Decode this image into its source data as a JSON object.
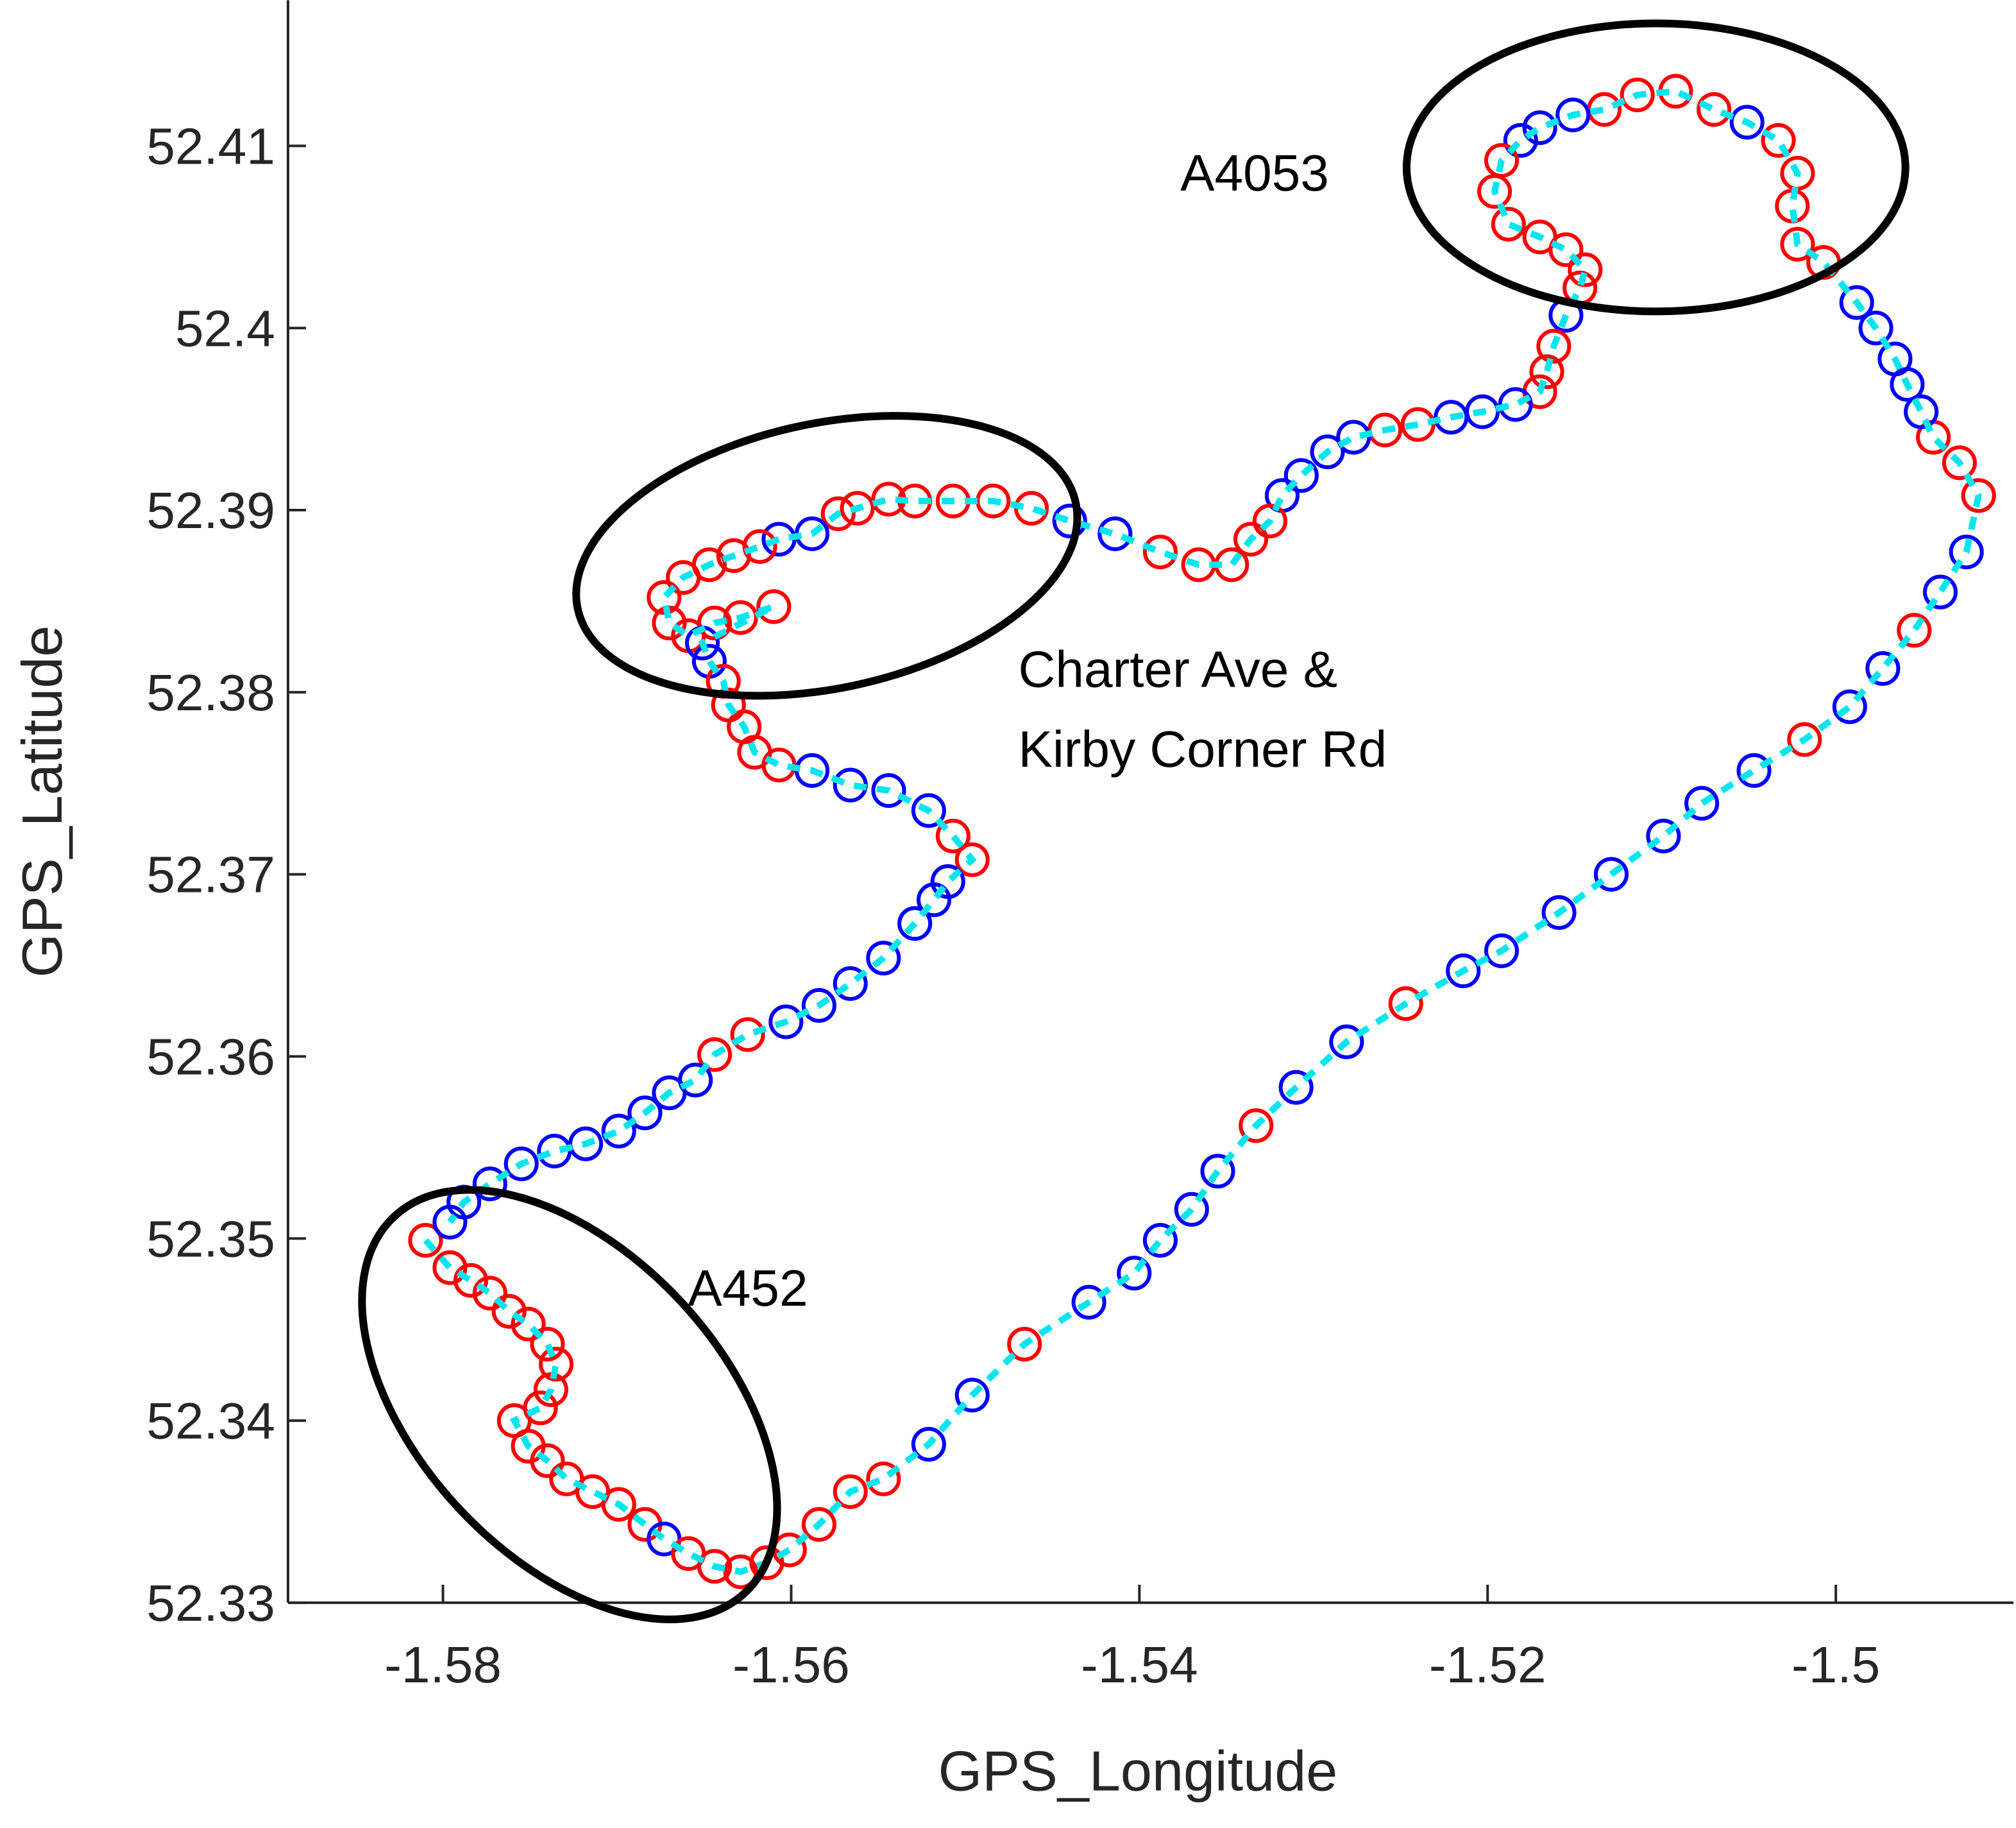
{
  "chart_data": {
    "type": "scatter",
    "xlabel": "GPS_Longitude",
    "ylabel": "GPS_Latitude",
    "xlim": [
      -1.5889,
      -1.4898
    ],
    "ylim": [
      52.33,
      52.418
    ],
    "xticks": [
      -1.58,
      -1.56,
      -1.54,
      -1.52,
      -1.5
    ],
    "yticks": [
      52.33,
      52.34,
      52.35,
      52.36,
      52.37,
      52.38,
      52.39,
      52.4,
      52.41
    ],
    "line_color": "#00e5ee",
    "annotations": [
      "A4053",
      "Charter Ave &",
      "Kirby Corner Rd",
      "A452"
    ],
    "x": [
      -1.581,
      -1.5796,
      -1.5784,
      -1.5773,
      -1.5762,
      -1.5751,
      -1.574,
      -1.5735,
      -1.5738,
      -1.5744,
      -1.5759,
      -1.5751,
      -1.574,
      -1.5729,
      -1.5714,
      -1.5699,
      -1.5684,
      -1.5673,
      -1.5659,
      -1.5644,
      -1.5629,
      -1.5614,
      -1.5601,
      -1.5584,
      -1.5566,
      -1.5547,
      -1.5521,
      -1.5496,
      -1.5466,
      -1.5429,
      -1.5403,
      -1.5388,
      -1.537,
      -1.5355,
      -1.5333,
      -1.531,
      -1.5281,
      -1.5247,
      -1.5214,
      -1.5192,
      -1.5159,
      -1.5129,
      -1.5099,
      -1.5077,
      -1.5047,
      -1.5018,
      -1.4992,
      -1.4973,
      -1.4955,
      -1.494,
      -1.4925,
      -1.4918,
      -1.4929,
      -1.4944,
      -1.4951,
      -1.4959,
      -1.4966,
      -1.4977,
      -1.4988,
      -1.5007,
      -1.5022,
      -1.5025,
      -1.5022,
      -1.5033,
      -1.5051,
      -1.507,
      -1.5092,
      -1.5114,
      -1.5133,
      -1.5151,
      -1.517,
      -1.5181,
      -1.5192,
      -1.5196,
      -1.5188,
      -1.517,
      -1.5155,
      -1.5144,
      -1.5147,
      -1.5155,
      -1.5162,
      -1.5166,
      -1.517,
      -1.5184,
      -1.5203,
      -1.5221,
      -1.524,
      -1.5259,
      -1.5277,
      -1.5292,
      -1.5307,
      -1.5318,
      -1.5325,
      -1.5336,
      -1.5347,
      -1.5366,
      -1.5388,
      -1.5414,
      -1.544,
      -1.5462,
      -1.5484,
      -1.5507,
      -1.5529,
      -1.5544,
      -1.5562,
      -1.5573,
      -1.5588,
      -1.5607,
      -1.5618,
      -1.5633,
      -1.5647,
      -1.5662,
      -1.5673,
      -1.567,
      -1.5659,
      -1.5644,
      -1.5629,
      -1.561,
      -1.5651,
      -1.5647,
      -1.5639,
      -1.5636,
      -1.5627,
      -1.5621,
      -1.5607,
      -1.5588,
      -1.5566,
      -1.5544,
      -1.5521,
      -1.5507,
      -1.5496,
      -1.551,
      -1.5518,
      -1.5529,
      -1.5547,
      -1.5566,
      -1.5584,
      -1.5603,
      -1.5625,
      -1.5644,
      -1.5655,
      -1.567,
      -1.5684,
      -1.5699,
      -1.5718,
      -1.5736,
      -1.5755,
      -1.5773,
      -1.5788,
      -1.5796
    ],
    "y": [
      52.3499,
      52.3484,
      52.3477,
      52.347,
      52.346,
      52.3453,
      52.3442,
      52.3431,
      52.3417,
      52.3407,
      52.34,
      52.3386,
      52.3378,
      52.3368,
      52.3361,
      52.3354,
      52.3343,
      52.3335,
      52.3327,
      52.332,
      52.3317,
      52.3322,
      52.3329,
      52.3343,
      52.3361,
      52.3368,
      52.3387,
      52.3414,
      52.3442,
      52.3465,
      52.3481,
      52.3499,
      52.3516,
      52.3537,
      52.3562,
      52.3583,
      52.3608,
      52.3629,
      52.3647,
      52.3658,
      52.3679,
      52.37,
      52.3721,
      52.3739,
      52.3757,
      52.3774,
      52.3792,
      52.3813,
      52.3834,
      52.3855,
      52.3877,
      52.3908,
      52.3926,
      52.394,
      52.3954,
      52.3969,
      52.3983,
      52.4,
      52.4014,
      52.4036,
      52.4046,
      52.4067,
      52.4085,
      52.4103,
      52.4113,
      52.412,
      52.413,
      52.4128,
      52.412,
      52.4117,
      52.411,
      52.4103,
      52.4092,
      52.4075,
      52.4057,
      52.405,
      52.4043,
      52.4032,
      52.4022,
      52.4007,
      52.399,
      52.3976,
      52.3965,
      52.3958,
      52.3954,
      52.3951,
      52.3947,
      52.3944,
      52.394,
      52.3932,
      52.3919,
      52.3908,
      52.3894,
      52.3884,
      52.387,
      52.387,
      52.3877,
      52.3887,
      52.3894,
      52.3901,
      52.3905,
      52.3905,
      52.3905,
      52.3906,
      52.3901,
      52.3898,
      52.3887,
      52.3884,
      52.388,
      52.3875,
      52.387,
      52.3863,
      52.3852,
      52.3838,
      52.3831,
      52.3838,
      52.3841,
      52.3847,
      52.3827,
      52.3817,
      52.3806,
      52.3793,
      52.3781,
      52.3767,
      52.376,
      52.3757,
      52.3749,
      52.3746,
      52.3735,
      52.3721,
      52.3708,
      52.3696,
      52.3686,
      52.3673,
      52.3654,
      52.364,
      52.3628,
      52.3619,
      52.3612,
      52.3601,
      52.3587,
      52.358,
      52.3569,
      52.3559,
      52.3552,
      52.3548,
      52.3541,
      52.353,
      52.352,
      52.3509
    ],
    "colors": [
      "red",
      "red",
      "red",
      "red",
      "red",
      "red",
      "red",
      "red",
      "red",
      "red",
      "red",
      "red",
      "red",
      "red",
      "red",
      "red",
      "red",
      "blue",
      "red",
      "red",
      "red",
      "red",
      "red",
      "red",
      "red",
      "red",
      "blue",
      "blue",
      "red",
      "blue",
      "blue",
      "blue",
      "blue",
      "blue",
      "red",
      "blue",
      "blue",
      "red",
      "blue",
      "blue",
      "blue",
      "blue",
      "blue",
      "blue",
      "blue",
      "red",
      "blue",
      "blue",
      "red",
      "blue",
      "blue",
      "red",
      "red",
      "red",
      "blue",
      "blue",
      "blue",
      "blue",
      "blue",
      "red",
      "red",
      "red",
      "red",
      "red",
      "blue",
      "red",
      "red",
      "red",
      "red",
      "blue",
      "blue",
      "blue",
      "red",
      "red",
      "red",
      "red",
      "red",
      "red",
      "red",
      "blue",
      "red",
      "red",
      "red",
      "blue",
      "blue",
      "blue",
      "red",
      "red",
      "blue",
      "blue",
      "blue",
      "blue",
      "red",
      "red",
      "red",
      "red",
      "red",
      "blue",
      "blue",
      "red",
      "red",
      "red",
      "red",
      "red",
      "red",
      "red",
      "blue",
      "blue",
      "red",
      "red",
      "red",
      "red",
      "red",
      "red",
      "red",
      "red",
      "red",
      "red",
      "blue",
      "blue",
      "red",
      "red",
      "red",
      "red",
      "red",
      "blue",
      "blue",
      "blue",
      "blue",
      "red",
      "red",
      "blue",
      "blue",
      "blue",
      "blue",
      "blue",
      "blue",
      "blue",
      "red",
      "red",
      "blue",
      "blue",
      "blue",
      "blue",
      "blue",
      "blue",
      "blue",
      "blue",
      "blue",
      "blue"
    ]
  }
}
